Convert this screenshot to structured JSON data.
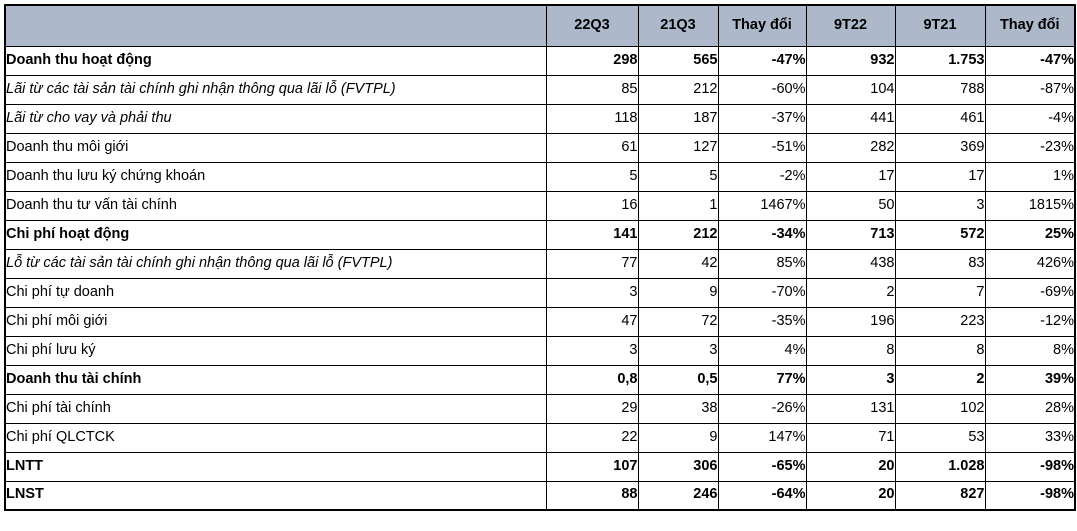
{
  "table": {
    "colors": {
      "header_bg": "#adb9ca",
      "border": "#000000",
      "text": "#000000",
      "background": "#ffffff"
    },
    "columns": [
      "",
      "22Q3",
      "21Q3",
      "Thay đổi",
      "9T22",
      "9T21",
      "Thay đổi"
    ],
    "rows": [
      {
        "label": "Doanh thu hoạt động",
        "style": "bold",
        "values": [
          "298",
          "565",
          "-47%",
          "932",
          "1.753",
          "-47%"
        ]
      },
      {
        "label": "Lãi từ các tài sản tài chính ghi nhận thông qua lãi lỗ (FVTPL)",
        "style": "italic",
        "values": [
          "85",
          "212",
          "-60%",
          "104",
          "788",
          "-87%"
        ]
      },
      {
        "label": "Lãi từ cho vay và phải thu",
        "style": "italic",
        "values": [
          "118",
          "187",
          "-37%",
          "441",
          "461",
          "-4%"
        ]
      },
      {
        "label": "Doanh thu môi giới",
        "style": "regular",
        "values": [
          "61",
          "127",
          "-51%",
          "282",
          "369",
          "-23%"
        ]
      },
      {
        "label": "Doanh thu lưu ký chứng khoán",
        "style": "regular",
        "values": [
          "5",
          "5",
          "-2%",
          "17",
          "17",
          "1%"
        ]
      },
      {
        "label": "Doanh thu tư vấn tài chính",
        "style": "regular",
        "values": [
          "16",
          "1",
          "1467%",
          "50",
          "3",
          "1815%"
        ]
      },
      {
        "label": "Chi phí hoạt động",
        "style": "bold",
        "values": [
          "141",
          "212",
          "-34%",
          "713",
          "572",
          "25%"
        ]
      },
      {
        "label": "Lỗ từ các tài sản tài chính ghi nhận thông qua lãi lỗ (FVTPL)",
        "style": "italic",
        "values": [
          "77",
          "42",
          "85%",
          "438",
          "83",
          "426%"
        ]
      },
      {
        "label": "Chi phí tự doanh",
        "style": "regular",
        "values": [
          "3",
          "9",
          "-70%",
          "2",
          "7",
          "-69%"
        ]
      },
      {
        "label": "Chi phí môi giới",
        "style": "regular",
        "values": [
          "47",
          "72",
          "-35%",
          "196",
          "223",
          "-12%"
        ]
      },
      {
        "label": "Chi phí lưu ký",
        "style": "regular",
        "values": [
          "3",
          "3",
          "4%",
          "8",
          "8",
          "8%"
        ]
      },
      {
        "label": "Doanh thu tài chính",
        "style": "bold",
        "values": [
          "0,8",
          "0,5",
          "77%",
          "3",
          "2",
          "39%"
        ]
      },
      {
        "label": "Chi phí tài chính",
        "style": "regular",
        "values": [
          "29",
          "38",
          "-26%",
          "131",
          "102",
          "28%"
        ]
      },
      {
        "label": "Chi phí QLCTCK",
        "style": "regular",
        "values": [
          "22",
          "9",
          "147%",
          "71",
          "53",
          "33%"
        ]
      },
      {
        "label": "LNTT",
        "style": "bold",
        "values": [
          "107",
          "306",
          "-65%",
          "20",
          "1.028",
          "-98%"
        ]
      },
      {
        "label": "LNST",
        "style": "bold",
        "values": [
          "88",
          "246",
          "-64%",
          "20",
          "827",
          "-98%"
        ]
      }
    ]
  }
}
